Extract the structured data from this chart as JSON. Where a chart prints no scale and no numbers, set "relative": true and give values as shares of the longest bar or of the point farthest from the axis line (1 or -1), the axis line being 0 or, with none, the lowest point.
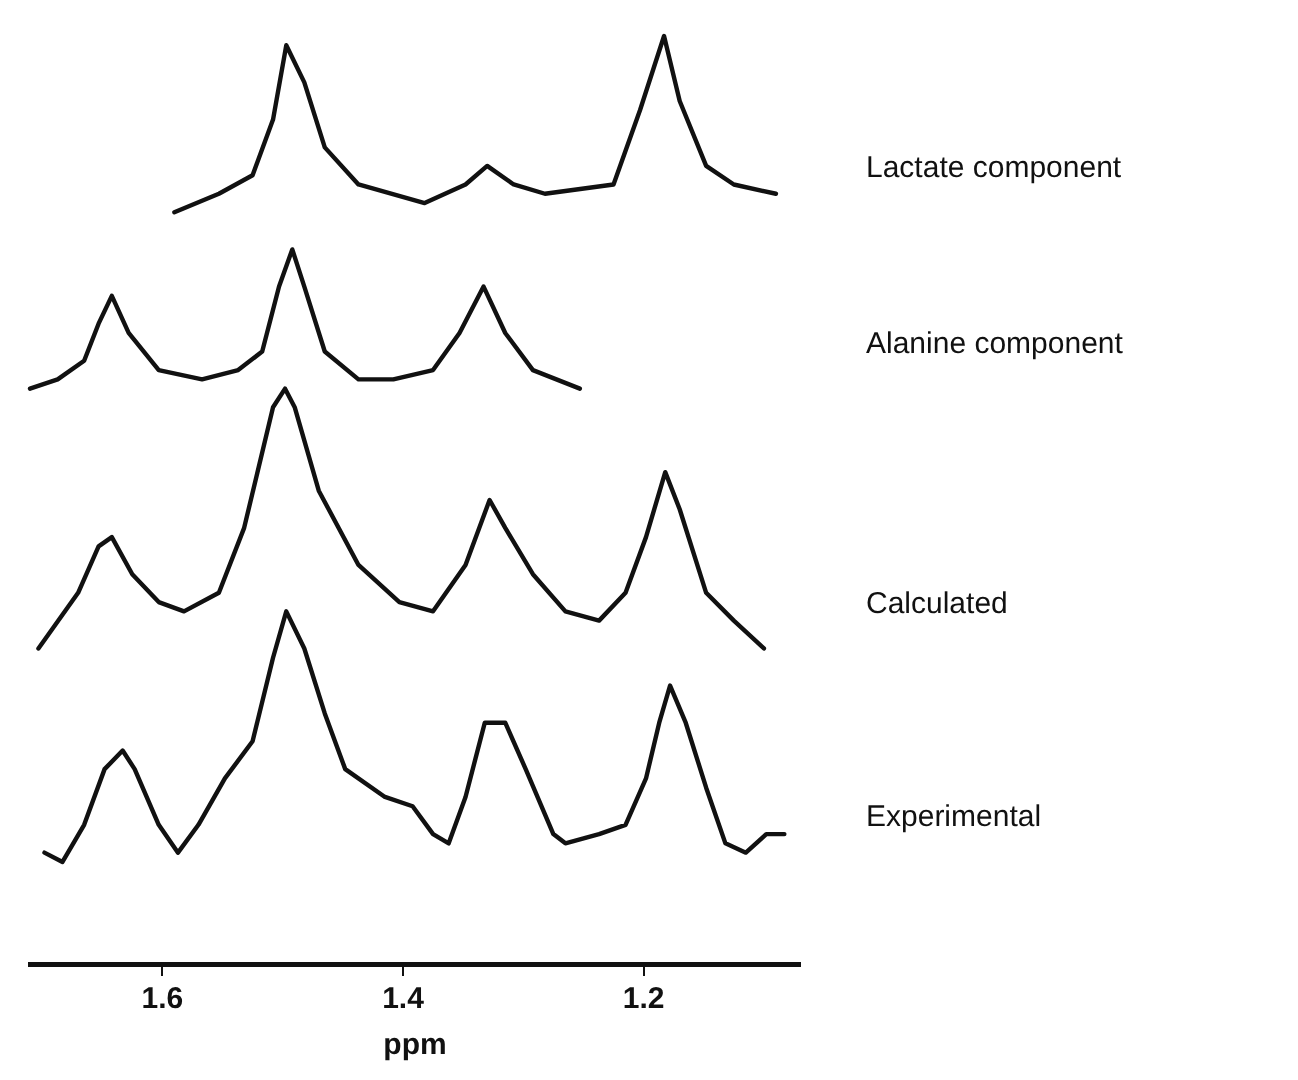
{
  "chart_data": {
    "type": "line",
    "relative": true,
    "xlim": [
      1.71,
      1.07
    ],
    "xticks": [
      1.6,
      1.4,
      {
        "value": 1.2,
        "label": "1.2"
      }
    ],
    "xlabel": "ppm",
    "tick_labels": "x",
    "marker": "none",
    "line_style": "solid",
    "series": [
      {
        "name": "Lactate component",
        "color": "#111111",
        "x": [
          1.59,
          1.553,
          1.525,
          1.508,
          1.497,
          1.482,
          1.465,
          1.437,
          1.382,
          1.348,
          1.33,
          1.308,
          1.282,
          1.225,
          1.203,
          1.183,
          1.17,
          1.148,
          1.125,
          1.09
        ],
        "values": [
          0.81,
          0.83,
          0.85,
          0.91,
          0.99,
          0.95,
          0.88,
          0.84,
          0.82,
          0.84,
          0.86,
          0.84,
          0.83,
          0.84,
          0.92,
          1,
          0.93,
          0.86,
          0.84,
          0.83
        ]
      },
      {
        "name": "Alanine component",
        "color": "#111111",
        "x": [
          1.71,
          1.687,
          1.665,
          1.653,
          1.642,
          1.628,
          1.603,
          1.567,
          1.537,
          1.517,
          1.503,
          1.492,
          1.482,
          1.465,
          1.437,
          1.408,
          1.375,
          1.353,
          1.333,
          1.315,
          1.292,
          1.253
        ],
        "values": [
          0.62,
          0.63,
          0.65,
          0.69,
          0.72,
          0.68,
          0.64,
          0.63,
          0.64,
          0.66,
          0.73,
          0.77,
          0.73,
          0.66,
          0.63,
          0.63,
          0.64,
          0.68,
          0.73,
          0.68,
          0.64,
          0.62
        ]
      },
      {
        "name": "Calculated",
        "color": "#111111",
        "x": [
          1.703,
          1.67,
          1.653,
          1.642,
          1.625,
          1.603,
          1.582,
          1.553,
          1.532,
          1.508,
          1.498,
          1.49,
          1.47,
          1.437,
          1.403,
          1.375,
          1.348,
          1.328,
          1.315,
          1.292,
          1.265,
          1.237,
          1.215,
          1.198,
          1.182,
          1.17,
          1.148,
          1.125,
          1.1
        ],
        "values": [
          0.34,
          0.4,
          0.45,
          0.46,
          0.42,
          0.39,
          0.38,
          0.4,
          0.47,
          0.6,
          0.62,
          0.6,
          0.51,
          0.43,
          0.39,
          0.38,
          0.43,
          0.5,
          0.47,
          0.42,
          0.38,
          0.37,
          0.4,
          0.46,
          0.53,
          0.49,
          0.4,
          0.37,
          0.34
        ]
      },
      {
        "name": "Experimental",
        "color": "#111111",
        "x": [
          1.698,
          1.683,
          1.665,
          1.648,
          1.633,
          1.623,
          1.603,
          1.587,
          1.57,
          1.548,
          1.525,
          1.508,
          1.497,
          1.482,
          1.465,
          1.448,
          1.415,
          1.392,
          1.375,
          1.362,
          1.348,
          1.332,
          1.315,
          1.298,
          1.275,
          1.265,
          1.237,
          1.215,
          1.198,
          1.187,
          1.178,
          1.165,
          1.148,
          1.132,
          1.115,
          1.098,
          1.083
        ],
        "values": [
          0.12,
          0.11,
          0.15,
          0.21,
          0.23,
          0.21,
          0.15,
          0.12,
          0.15,
          0.2,
          0.24,
          0.33,
          0.38,
          0.34,
          0.27,
          0.21,
          0.18,
          0.17,
          0.14,
          0.13,
          0.18,
          0.26,
          0.26,
          0.21,
          0.14,
          0.13,
          0.14,
          0.15,
          0.2,
          0.26,
          0.3,
          0.26,
          0.19,
          0.13,
          0.12,
          0.14,
          0.14
        ]
      }
    ]
  }
}
